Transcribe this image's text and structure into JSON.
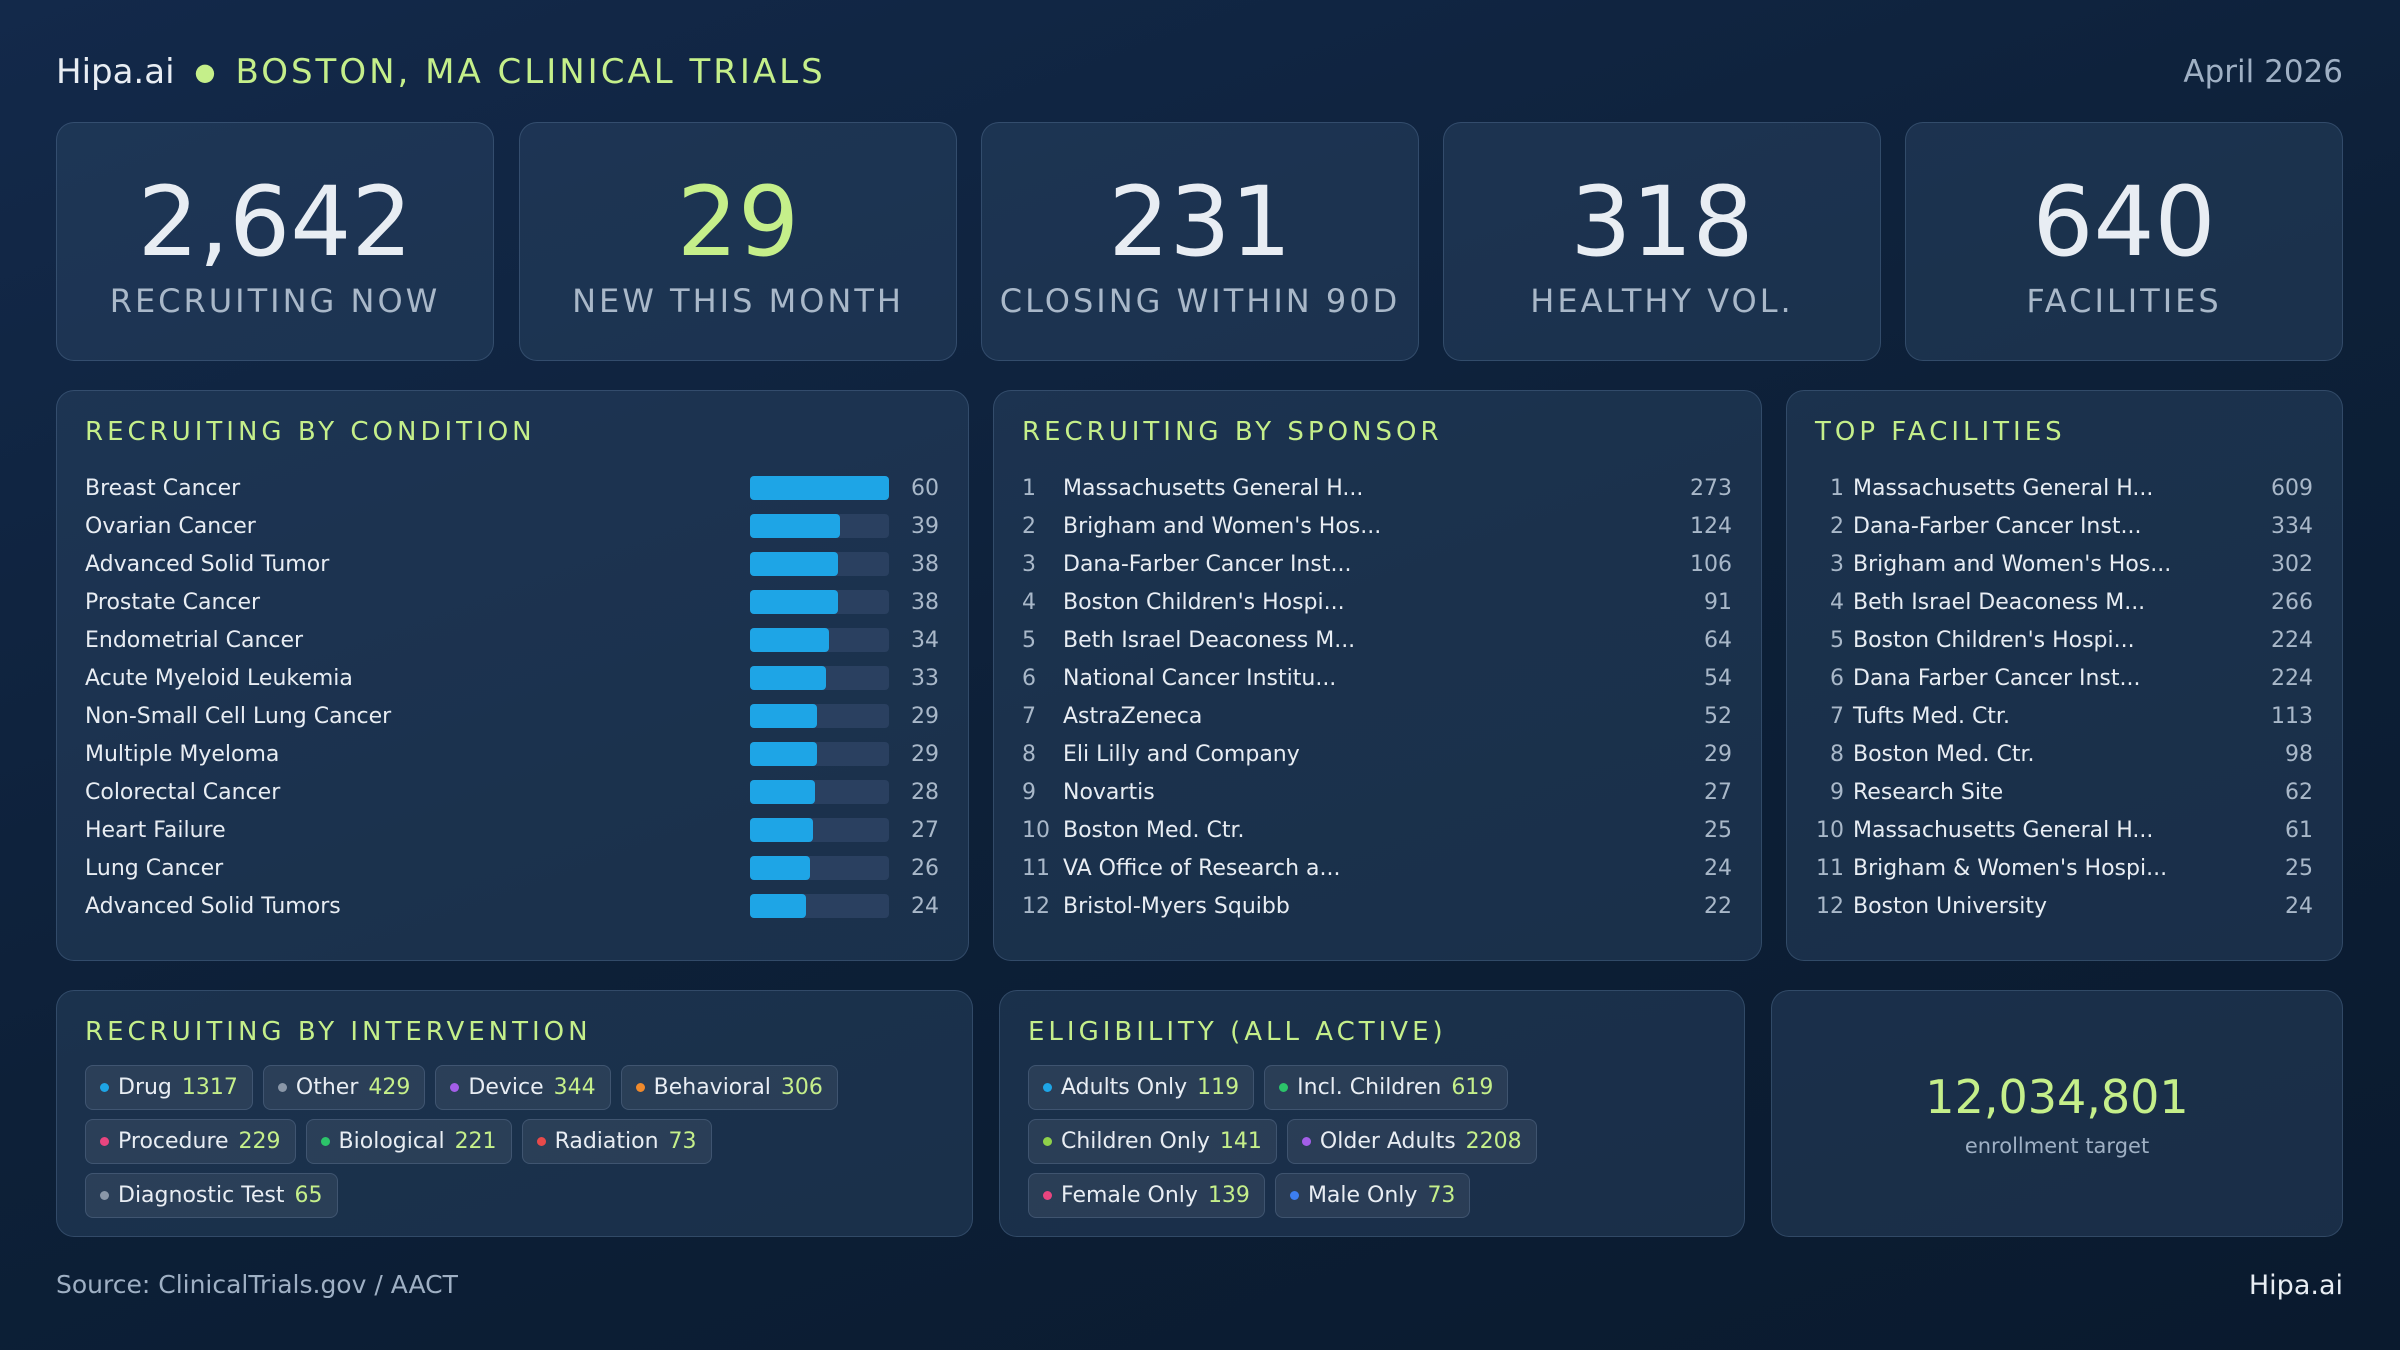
{
  "header": {
    "brand": "Hipa.ai",
    "title": "BOSTON, MA CLINICAL TRIALS",
    "date": "April 2026"
  },
  "kpis": [
    {
      "value": "2,642",
      "label": "RECRUITING NOW",
      "accent": false
    },
    {
      "value": 29,
      "label": "NEW THIS MONTH",
      "accent": true
    },
    {
      "value": 231,
      "label": "CLOSING WITHIN 90D",
      "accent": false
    },
    {
      "value": 318,
      "label": "HEALTHY VOL.",
      "accent": false
    },
    {
      "value": 640,
      "label": "FACILITIES",
      "accent": false
    }
  ],
  "conditions": {
    "title": "RECRUITING BY CONDITION",
    "bar_color": "#1ea5e6",
    "items": [
      {
        "name": "Breast Cancer",
        "value": 60
      },
      {
        "name": "Ovarian Cancer",
        "value": 39
      },
      {
        "name": "Advanced Solid Tumor",
        "value": 38
      },
      {
        "name": "Prostate Cancer",
        "value": 38
      },
      {
        "name": "Endometrial Cancer",
        "value": 34
      },
      {
        "name": "Acute Myeloid Leukemia",
        "value": 33
      },
      {
        "name": "Non-Small Cell Lung Cancer",
        "value": 29
      },
      {
        "name": "Multiple Myeloma",
        "value": 29
      },
      {
        "name": "Colorectal Cancer",
        "value": 28
      },
      {
        "name": "Heart Failure",
        "value": 27
      },
      {
        "name": "Lung Cancer",
        "value": 26
      },
      {
        "name": "Advanced Solid Tumors",
        "value": 24
      }
    ]
  },
  "sponsors": {
    "title": "RECRUITING BY SPONSOR",
    "items": [
      {
        "rank": 1,
        "name": "Massachusetts General H...",
        "value": 273
      },
      {
        "rank": 2,
        "name": "Brigham and Women's Hos...",
        "value": 124
      },
      {
        "rank": 3,
        "name": "Dana-Farber Cancer Inst...",
        "value": 106
      },
      {
        "rank": 4,
        "name": "Boston Children's Hospi...",
        "value": 91
      },
      {
        "rank": 5,
        "name": "Beth Israel Deaconess M...",
        "value": 64
      },
      {
        "rank": 6,
        "name": "National Cancer Institu...",
        "value": 54
      },
      {
        "rank": 7,
        "name": "AstraZeneca",
        "value": 52
      },
      {
        "rank": 8,
        "name": "Eli Lilly and Company",
        "value": 29
      },
      {
        "rank": 9,
        "name": "Novartis",
        "value": 27
      },
      {
        "rank": 10,
        "name": "Boston Med. Ctr.",
        "value": 25
      },
      {
        "rank": 11,
        "name": "VA Office of Research a...",
        "value": 24
      },
      {
        "rank": 12,
        "name": "Bristol-Myers Squibb",
        "value": 22
      }
    ]
  },
  "facilities": {
    "title": "TOP FACILITIES",
    "items": [
      {
        "rank": 1,
        "name": "Massachusetts General H...",
        "value": 609
      },
      {
        "rank": 2,
        "name": "Dana-Farber Cancer Inst...",
        "value": 334
      },
      {
        "rank": 3,
        "name": "Brigham and Women's Hos...",
        "value": 302
      },
      {
        "rank": 4,
        "name": "Beth Israel Deaconess M...",
        "value": 266
      },
      {
        "rank": 5,
        "name": "Boston Children's Hospi...",
        "value": 224
      },
      {
        "rank": 6,
        "name": "Dana Farber Cancer Inst...",
        "value": 224
      },
      {
        "rank": 7,
        "name": "Tufts Med. Ctr.",
        "value": 113
      },
      {
        "rank": 8,
        "name": "Boston Med. Ctr.",
        "value": 98
      },
      {
        "rank": 9,
        "name": "Research Site",
        "value": 62
      },
      {
        "rank": 10,
        "name": "Massachusetts General H...",
        "value": 61
      },
      {
        "rank": 11,
        "name": "Brigham & Women's Hospi...",
        "value": 25
      },
      {
        "rank": 12,
        "name": "Boston University",
        "value": 24
      }
    ]
  },
  "interventions": {
    "title": "RECRUITING BY INTERVENTION",
    "items": [
      {
        "name": "Drug",
        "value": 1317,
        "color": "#1ea5e6"
      },
      {
        "name": "Other",
        "value": 429,
        "color": "#8a97a8"
      },
      {
        "name": "Device",
        "value": 344,
        "color": "#a35ee8"
      },
      {
        "name": "Behavioral",
        "value": 306,
        "color": "#f08a2c"
      },
      {
        "name": "Procedure",
        "value": 229,
        "color": "#e8457f"
      },
      {
        "name": "Biological",
        "value": 221,
        "color": "#2cc46a"
      },
      {
        "name": "Radiation",
        "value": 73,
        "color": "#e84a4a"
      },
      {
        "name": "Diagnostic Test",
        "value": 65,
        "color": "#8a97a8"
      }
    ]
  },
  "eligibility": {
    "title": "ELIGIBILITY (ALL ACTIVE)",
    "items": [
      {
        "name": "Adults Only",
        "value": 119,
        "color": "#1ea5e6"
      },
      {
        "name": "Incl. Children",
        "value": 619,
        "color": "#2cc46a"
      },
      {
        "name": "Children Only",
        "value": 141,
        "color": "#8fd14a"
      },
      {
        "name": "Older Adults",
        "value": 2208,
        "color": "#a35ee8"
      },
      {
        "name": "Female Only",
        "value": 139,
        "color": "#e8457f"
      },
      {
        "name": "Male Only",
        "value": 73,
        "color": "#3c7ef0"
      }
    ]
  },
  "enrollment": {
    "value": "12,034,801",
    "label": "enrollment target"
  },
  "footer": {
    "source": "Source: ClinicalTrials.gov / AACT",
    "brand": "Hipa.ai"
  }
}
